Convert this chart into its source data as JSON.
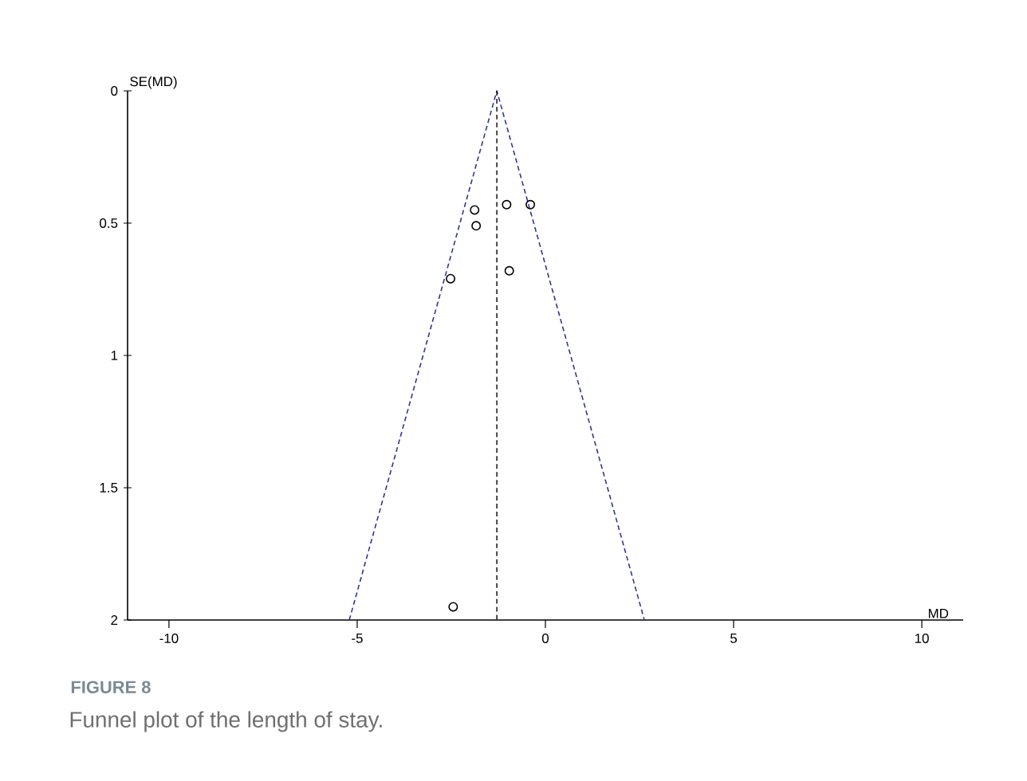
{
  "chart_data": {
    "type": "scatter",
    "xlabel": "MD",
    "ylabel": "SE(MD)",
    "annotations": [
      "FIGURE 8",
      "Funnel plot of the length of stay."
    ],
    "series": [
      {
        "color": "#000000",
        "marker": "circle",
        "x": [
          -1.88,
          -1.84,
          -1.03,
          -0.4,
          -2.52,
          -0.96,
          -2.45
        ],
        "values": [
          0.45,
          0.51,
          0.43,
          0.43,
          0.71,
          0.68,
          1.95
        ]
      },
      {
        "type": "line",
        "color": "#33339a",
        "line_style": "dashed",
        "marker": "none",
        "x": [
          -5.21,
          -1.29,
          2.63
        ],
        "values": [
          2,
          0,
          2
        ]
      }
    ],
    "ref_lines": [
      {
        "axis": "x",
        "value": -1.29,
        "color": "#000000",
        "line_style": "dashed"
      }
    ],
    "xlim": [
      -11.1,
      11.1
    ],
    "ylim": [
      2,
      0
    ],
    "xticks": [
      -10,
      -5,
      0,
      5,
      10
    ],
    "yticks": [
      0,
      0.5,
      1,
      1.5,
      2
    ]
  }
}
